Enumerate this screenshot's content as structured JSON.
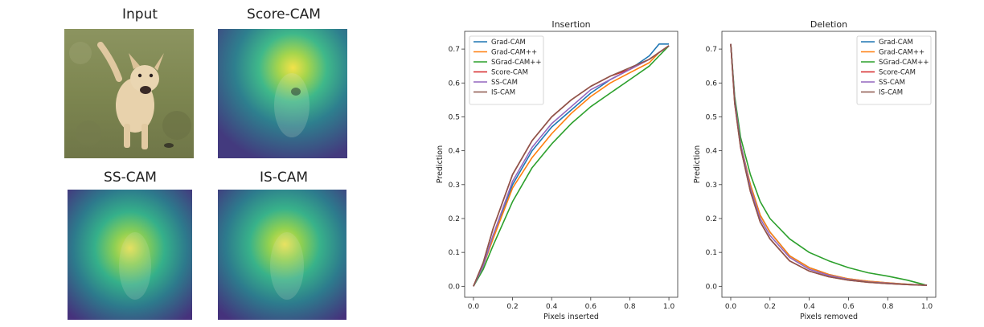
{
  "figure": {
    "panels": [
      {
        "id": "input",
        "label": "Input"
      },
      {
        "id": "scorecam",
        "label": "Score-CAM"
      },
      {
        "id": "sscam",
        "label": "SS-CAM"
      },
      {
        "id": "iscam",
        "label": "IS-CAM"
      }
    ]
  },
  "chart_data": [
    {
      "type": "line",
      "title": "Insertion",
      "xlabel": "Pixels inserted",
      "ylabel": "Prediction",
      "xlim": [
        0,
        1.0
      ],
      "ylim": [
        0,
        0.72
      ],
      "xticks": [
        0.0,
        0.2,
        0.4,
        0.6,
        0.8,
        1.0
      ],
      "xtick_labels": [
        "0.0",
        "0.2",
        "0.4",
        "0.6",
        "0.8",
        "1.0"
      ],
      "yticks": [
        0.0,
        0.1,
        0.2,
        0.3,
        0.4,
        0.5,
        0.6,
        0.7
      ],
      "ytick_labels": [
        "0.0",
        "0.1",
        "0.2",
        "0.3",
        "0.4",
        "0.5",
        "0.6",
        "0.7"
      ],
      "legend_position": "top-left",
      "x": [
        0.0,
        0.05,
        0.1,
        0.2,
        0.3,
        0.4,
        0.5,
        0.6,
        0.7,
        0.8,
        0.9,
        0.95,
        1.0
      ],
      "series": [
        {
          "name": "Grad-CAM",
          "color": "#1f77b4",
          "values": [
            0.0,
            0.06,
            0.15,
            0.3,
            0.4,
            0.47,
            0.52,
            0.57,
            0.61,
            0.64,
            0.68,
            0.715,
            0.715
          ]
        },
        {
          "name": "Grad-CAM++",
          "color": "#ff7f0e",
          "values": [
            0.0,
            0.06,
            0.14,
            0.29,
            0.38,
            0.45,
            0.51,
            0.56,
            0.6,
            0.63,
            0.66,
            0.69,
            0.71
          ]
        },
        {
          "name": "SGrad-CAM++",
          "color": "#2ca02c",
          "values": [
            0.0,
            0.05,
            0.12,
            0.25,
            0.35,
            0.42,
            0.48,
            0.53,
            0.57,
            0.61,
            0.65,
            0.68,
            0.71
          ]
        },
        {
          "name": "Score-CAM",
          "color": "#d62728",
          "values": [
            0.0,
            0.07,
            0.17,
            0.33,
            0.43,
            0.5,
            0.55,
            0.59,
            0.62,
            0.64,
            0.67,
            0.69,
            0.71
          ]
        },
        {
          "name": "SS-CAM",
          "color": "#9467bd",
          "values": [
            0.0,
            0.06,
            0.15,
            0.31,
            0.41,
            0.48,
            0.53,
            0.58,
            0.61,
            0.64,
            0.67,
            0.69,
            0.71
          ]
        },
        {
          "name": "IS-CAM",
          "color": "#8c564b",
          "values": [
            0.0,
            0.07,
            0.17,
            0.33,
            0.43,
            0.5,
            0.55,
            0.59,
            0.62,
            0.645,
            0.67,
            0.69,
            0.71
          ]
        }
      ]
    },
    {
      "type": "line",
      "title": "Deletion",
      "xlabel": "Pixels removed",
      "ylabel": "Prediction",
      "xlim": [
        0,
        1.0
      ],
      "ylim": [
        0,
        0.72
      ],
      "xticks": [
        0.0,
        0.2,
        0.4,
        0.6,
        0.8,
        1.0
      ],
      "xtick_labels": [
        "0.0",
        "0.2",
        "0.4",
        "0.6",
        "0.8",
        "1.0"
      ],
      "yticks": [
        0.0,
        0.1,
        0.2,
        0.3,
        0.4,
        0.5,
        0.6,
        0.7
      ],
      "ytick_labels": [
        "0.0",
        "0.1",
        "0.2",
        "0.3",
        "0.4",
        "0.5",
        "0.6",
        "0.7"
      ],
      "legend_position": "top-right",
      "x": [
        0.0,
        0.02,
        0.05,
        0.1,
        0.15,
        0.2,
        0.3,
        0.4,
        0.5,
        0.6,
        0.7,
        0.8,
        0.9,
        1.0
      ],
      "series": [
        {
          "name": "Grad-CAM",
          "color": "#1f77b4",
          "values": [
            0.715,
            0.55,
            0.42,
            0.3,
            0.21,
            0.16,
            0.09,
            0.055,
            0.035,
            0.022,
            0.015,
            0.01,
            0.006,
            0.003
          ]
        },
        {
          "name": "Grad-CAM++",
          "color": "#ff7f0e",
          "values": [
            0.715,
            0.55,
            0.42,
            0.3,
            0.21,
            0.16,
            0.09,
            0.055,
            0.035,
            0.022,
            0.015,
            0.01,
            0.006,
            0.003
          ]
        },
        {
          "name": "SGrad-CAM++",
          "color": "#2ca02c",
          "values": [
            0.715,
            0.56,
            0.44,
            0.33,
            0.25,
            0.2,
            0.14,
            0.1,
            0.075,
            0.055,
            0.04,
            0.03,
            0.018,
            0.003
          ]
        },
        {
          "name": "Score-CAM",
          "color": "#d62728",
          "values": [
            0.715,
            0.54,
            0.41,
            0.28,
            0.19,
            0.14,
            0.075,
            0.045,
            0.028,
            0.018,
            0.012,
            0.008,
            0.005,
            0.003
          ]
        },
        {
          "name": "SS-CAM",
          "color": "#9467bd",
          "values": [
            0.715,
            0.55,
            0.42,
            0.29,
            0.2,
            0.15,
            0.085,
            0.05,
            0.032,
            0.02,
            0.013,
            0.009,
            0.005,
            0.003
          ]
        },
        {
          "name": "IS-CAM",
          "color": "#8c564b",
          "values": [
            0.715,
            0.54,
            0.41,
            0.28,
            0.19,
            0.14,
            0.075,
            0.045,
            0.028,
            0.018,
            0.012,
            0.008,
            0.005,
            0.003
          ]
        }
      ]
    }
  ]
}
